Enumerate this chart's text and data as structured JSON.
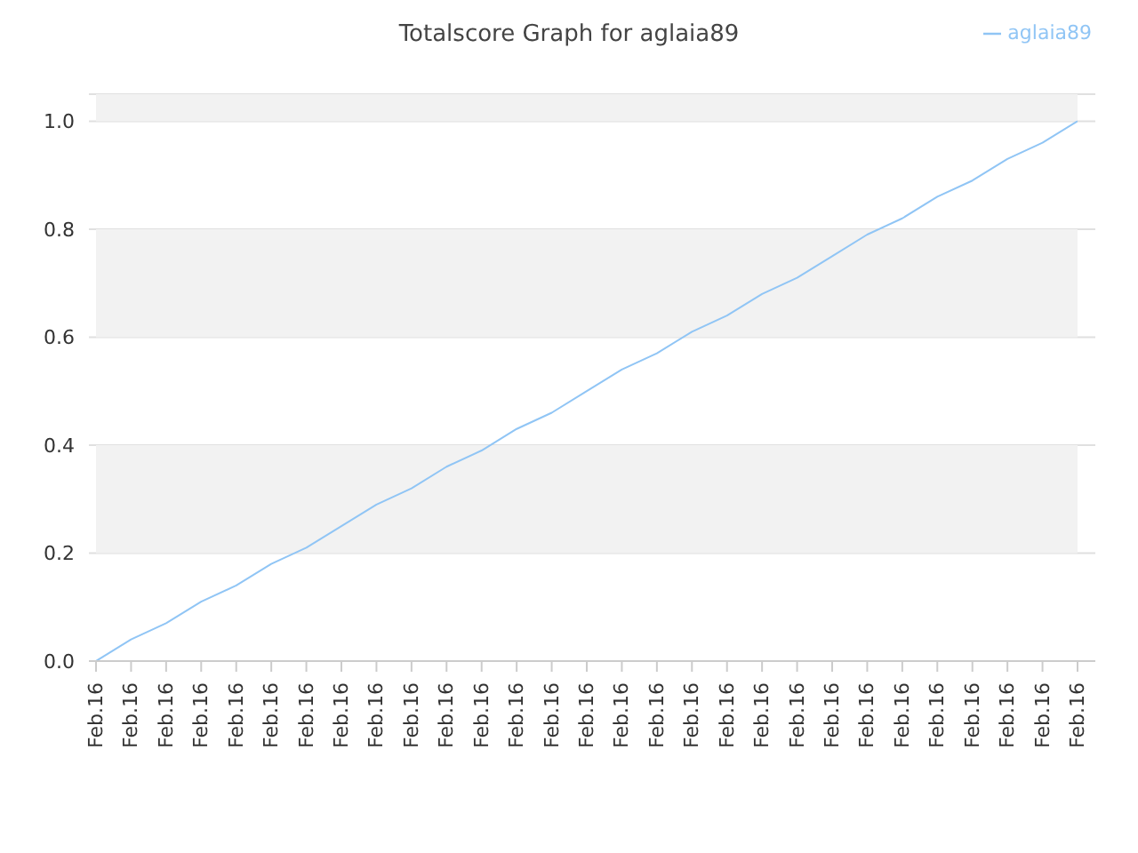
{
  "chart_data": {
    "type": "line",
    "title": "Totalscore Graph for aglaia89",
    "categories": [
      "Feb.16",
      "Feb.16",
      "Feb.16",
      "Feb.16",
      "Feb.16",
      "Feb.16",
      "Feb.16",
      "Feb.16",
      "Feb.16",
      "Feb.16",
      "Feb.16",
      "Feb.16",
      "Feb.16",
      "Feb.16",
      "Feb.16",
      "Feb.16",
      "Feb.16",
      "Feb.16",
      "Feb.16",
      "Feb.16",
      "Feb.16",
      "Feb.16",
      "Feb.16",
      "Feb.16",
      "Feb.16",
      "Feb.16",
      "Feb.16",
      "Feb.16",
      "Feb.16"
    ],
    "series": [
      {
        "name": "aglaia89",
        "color": "#90c5f5",
        "values": [
          0,
          0.04,
          0.07,
          0.11,
          0.14,
          0.18,
          0.21,
          0.25,
          0.29,
          0.32,
          0.36,
          0.39,
          0.43,
          0.46,
          0.5,
          0.54,
          0.57,
          0.61,
          0.64,
          0.68,
          0.71,
          0.75,
          0.79,
          0.82,
          0.86,
          0.89,
          0.93,
          0.96,
          1
        ]
      }
    ],
    "ylim": [
      0,
      1.05
    ],
    "yticks": [
      {
        "value": 0,
        "label": "0.0"
      },
      {
        "value": 0.2,
        "label": "0.2"
      },
      {
        "value": 0.4,
        "label": "0.4"
      },
      {
        "value": 0.6,
        "label": "0.6"
      },
      {
        "value": 0.8,
        "label": "0.8"
      },
      {
        "value": 1,
        "label": "1.0"
      }
    ],
    "bands": [
      {
        "axis": "y",
        "from": 0.2,
        "to": 0.4,
        "color": "#f2f2f2"
      },
      {
        "axis": "y",
        "from": 0.6,
        "to": 0.8,
        "color": "#f2f2f2"
      },
      {
        "axis": "y",
        "from": 1,
        "to": 1.05,
        "color": "#f2f2f2"
      }
    ],
    "grid": "y",
    "legend": "top right",
    "marker": "none",
    "line_style": "solid"
  }
}
